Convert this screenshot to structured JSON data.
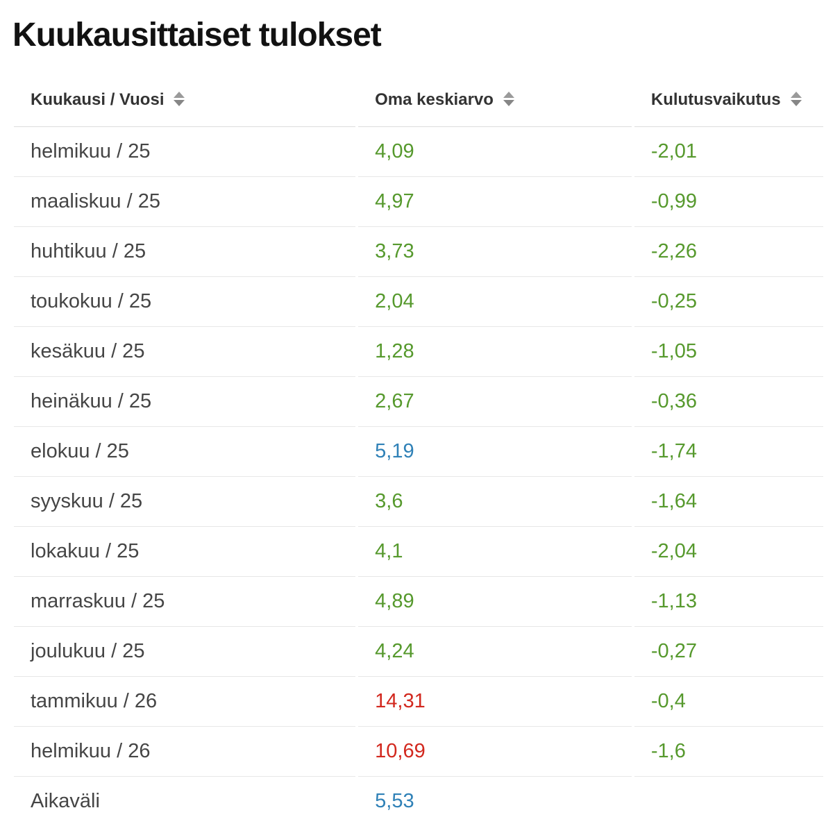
{
  "page": {
    "title": "Kuukausittaiset tulokset"
  },
  "table": {
    "columns": [
      {
        "label": "Kuukausi / Vuosi",
        "sortable": true,
        "sort_icon": "sort-arrows"
      },
      {
        "label": "Oma keskiarvo",
        "sortable": true,
        "sort_icon": "sort-arrows"
      },
      {
        "label": "Kulutusvaikutus",
        "sortable": true,
        "sort_icon": "sort-arrows"
      }
    ],
    "rows": [
      {
        "month": "helmikuu / 25",
        "average": {
          "text": "4,09",
          "color": "green"
        },
        "impact": {
          "text": "-2,01",
          "color": "green"
        }
      },
      {
        "month": "maaliskuu / 25",
        "average": {
          "text": "4,97",
          "color": "green"
        },
        "impact": {
          "text": "-0,99",
          "color": "green"
        }
      },
      {
        "month": "huhtikuu / 25",
        "average": {
          "text": "3,73",
          "color": "green"
        },
        "impact": {
          "text": "-2,26",
          "color": "green"
        }
      },
      {
        "month": "toukokuu / 25",
        "average": {
          "text": "2,04",
          "color": "green"
        },
        "impact": {
          "text": "-0,25",
          "color": "green"
        }
      },
      {
        "month": "kesäkuu / 25",
        "average": {
          "text": "1,28",
          "color": "green"
        },
        "impact": {
          "text": "-1,05",
          "color": "green"
        }
      },
      {
        "month": "heinäkuu / 25",
        "average": {
          "text": "2,67",
          "color": "green"
        },
        "impact": {
          "text": "-0,36",
          "color": "green"
        }
      },
      {
        "month": "elokuu / 25",
        "average": {
          "text": "5,19",
          "color": "blue"
        },
        "impact": {
          "text": "-1,74",
          "color": "green"
        }
      },
      {
        "month": "syyskuu / 25",
        "average": {
          "text": "3,6",
          "color": "green"
        },
        "impact": {
          "text": "-1,64",
          "color": "green"
        }
      },
      {
        "month": "lokakuu / 25",
        "average": {
          "text": "4,1",
          "color": "green"
        },
        "impact": {
          "text": "-2,04",
          "color": "green"
        }
      },
      {
        "month": "marraskuu / 25",
        "average": {
          "text": "4,89",
          "color": "green"
        },
        "impact": {
          "text": "-1,13",
          "color": "green"
        }
      },
      {
        "month": "joulukuu / 25",
        "average": {
          "text": "4,24",
          "color": "green"
        },
        "impact": {
          "text": "-0,27",
          "color": "green"
        }
      },
      {
        "month": "tammikuu / 26",
        "average": {
          "text": "14,31",
          "color": "red"
        },
        "impact": {
          "text": "-0,4",
          "color": "green"
        }
      },
      {
        "month": "helmikuu / 26",
        "average": {
          "text": "10,69",
          "color": "red"
        },
        "impact": {
          "text": "-1,6",
          "color": "green"
        }
      },
      {
        "month": "Aikaväli",
        "average": {
          "text": "5,53",
          "color": "blue"
        },
        "impact": {
          "text": "",
          "color": "green"
        }
      }
    ]
  },
  "colors": {
    "green": "#56992d",
    "blue": "#2f81b7",
    "red": "#d2281e",
    "header_text": "#333333",
    "row_text": "#454545",
    "divider": "#e7e7e7"
  }
}
